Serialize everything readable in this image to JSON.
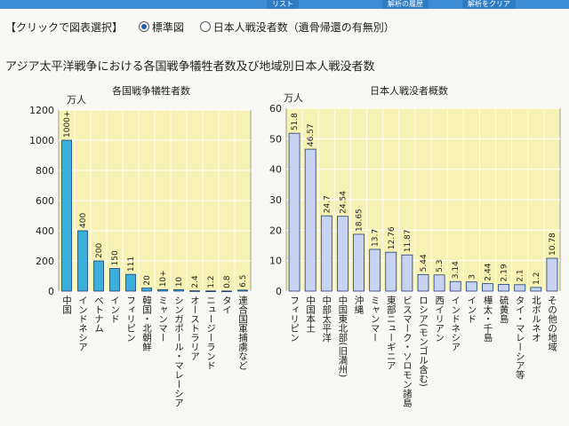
{
  "header": {
    "tabs": [
      "リスト",
      "解析の履歴",
      "解析をクリア"
    ]
  },
  "options": {
    "prompt": "【クリックで図表選択】",
    "choices": [
      {
        "label": "標準図",
        "selected": true
      },
      {
        "label": "日本人戦没者数（遺骨帰還の有無別）",
        "selected": false
      }
    ]
  },
  "page_title": "アジア太平洋戦争における各国戦争犠牲者数及び地域別日本人戦没者数",
  "colors": {
    "plot_bg": "#f6f2b4",
    "bar_left": "#3aaedc",
    "bar_right": "#c8d2f2",
    "bar_stroke": "#1e3f78",
    "grid": "#ffffff"
  },
  "chart_data": [
    {
      "type": "bar",
      "title": "各国戦争犠牲者数",
      "ylabel": "万人",
      "ylim": [
        0,
        1200
      ],
      "yticks": [
        0,
        200,
        400,
        600,
        800,
        1000,
        1200
      ],
      "categories": [
        "中国",
        "インドネシア",
        "ベトナム",
        "インド",
        "フィリピン",
        "韓国・北朝鮮",
        "ミャンマー",
        "シンガポール・マレーシア",
        "オーストラリア",
        "ニュージーランド",
        "タイ",
        "連合国軍捕虜など"
      ],
      "values": [
        1000,
        400,
        200,
        150,
        111,
        20,
        10,
        10,
        2.4,
        1.2,
        0.8,
        6.5
      ],
      "data_labels": [
        "1000+",
        "400",
        "200",
        "150",
        "111",
        "20",
        "10+",
        "10",
        "2.4",
        "1.2",
        "0.8",
        "6.5"
      ]
    },
    {
      "type": "bar",
      "title": "日本人戦没者概数",
      "ylabel": "万人",
      "ylim": [
        0,
        60
      ],
      "yticks": [
        0,
        10,
        20,
        30,
        40,
        50,
        60
      ],
      "categories": [
        "フィリピン",
        "中国本土",
        "中部太平洋",
        "中国東北部(旧満州)",
        "沖縄",
        "ミャンマー",
        "東部ニューギニア",
        "ビスマーク・ソロモン諸島",
        "ロシア(モンゴル含む)",
        "西イリアン",
        "インドネシア",
        "インド",
        "樺太・千島",
        "硫黄島",
        "タイ・マレーシア等",
        "北ボルネオ",
        "その他の地域"
      ],
      "values": [
        51.8,
        46.57,
        24.7,
        24.54,
        18.65,
        13.7,
        12.76,
        11.87,
        5.44,
        5.3,
        3.14,
        3,
        2.44,
        2.19,
        2.1,
        1.2,
        10.78
      ],
      "data_labels": [
        "51.8",
        "46.57",
        "24.7",
        "24.54",
        "18.65",
        "13.7",
        "12.76",
        "11.87",
        "5.44",
        "5.3",
        "3.14",
        "3",
        "2.44",
        "2.19",
        "2.1",
        "1.2",
        "10.78"
      ]
    }
  ]
}
